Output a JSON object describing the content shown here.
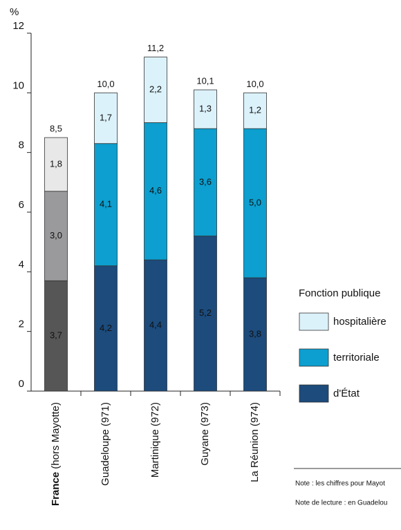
{
  "chart_data": {
    "type": "stacked_bar",
    "y_unit": "%",
    "categories": [
      "France (hors Mayotte)",
      "Guadeloupe (971)",
      "Martinique (972)",
      "Guyane (973)",
      "La Réunion (974)"
    ],
    "bold_first_word": [
      true,
      false,
      false,
      false,
      false
    ],
    "series": [
      {
        "name": "d'État",
        "color": "#1c4b7c",
        "colors": [
          "#565656",
          "#1c4b7c",
          "#1c4b7c",
          "#1c4b7c",
          "#1c4b7c"
        ],
        "text_color": "#ffffff",
        "values": [
          3.7,
          4.2,
          4.4,
          5.2,
          3.8
        ],
        "value_labels": [
          "3,7",
          "4,2",
          "4,4",
          "5,2",
          "3,8"
        ]
      },
      {
        "name": "territoriale",
        "color": "#0c9fcf",
        "colors": [
          "#9a9a9c",
          "#0c9fcf",
          "#0c9fcf",
          "#0c9fcf",
          "#0c9fcf"
        ],
        "text_color": "#ffffff",
        "values": [
          3.0,
          4.1,
          4.6,
          3.6,
          5.0
        ],
        "value_labels": [
          "3,0",
          "4,1",
          "4,6",
          "3,6",
          "5,0"
        ]
      },
      {
        "name": "hospitalière",
        "color": "#dcf2fb",
        "colors": [
          "#e8e8e8",
          "#dcf2fb",
          "#dcf2fb",
          "#dcf2fb",
          "#dcf2fb"
        ],
        "text_color": "#222222",
        "values": [
          1.8,
          1.7,
          2.2,
          1.3,
          1.2
        ],
        "value_labels": [
          "1,8",
          "1,7",
          "2,2",
          "1,3",
          "1,2"
        ]
      }
    ],
    "totals": [
      8.5,
      10.0,
      11.2,
      10.1,
      10.0
    ],
    "total_labels": [
      "8,5",
      "10,0",
      "11,2",
      "10,1",
      "10,0"
    ],
    "ylim": [
      0,
      12
    ],
    "yticks": [
      0,
      2,
      4,
      6,
      8,
      10,
      12
    ],
    "legend_title": "Fonction publique",
    "legend_position": "right",
    "notes": [
      "Note : les chiffres pour Mayot",
      "Note de lecture : en Guadelou"
    ]
  }
}
